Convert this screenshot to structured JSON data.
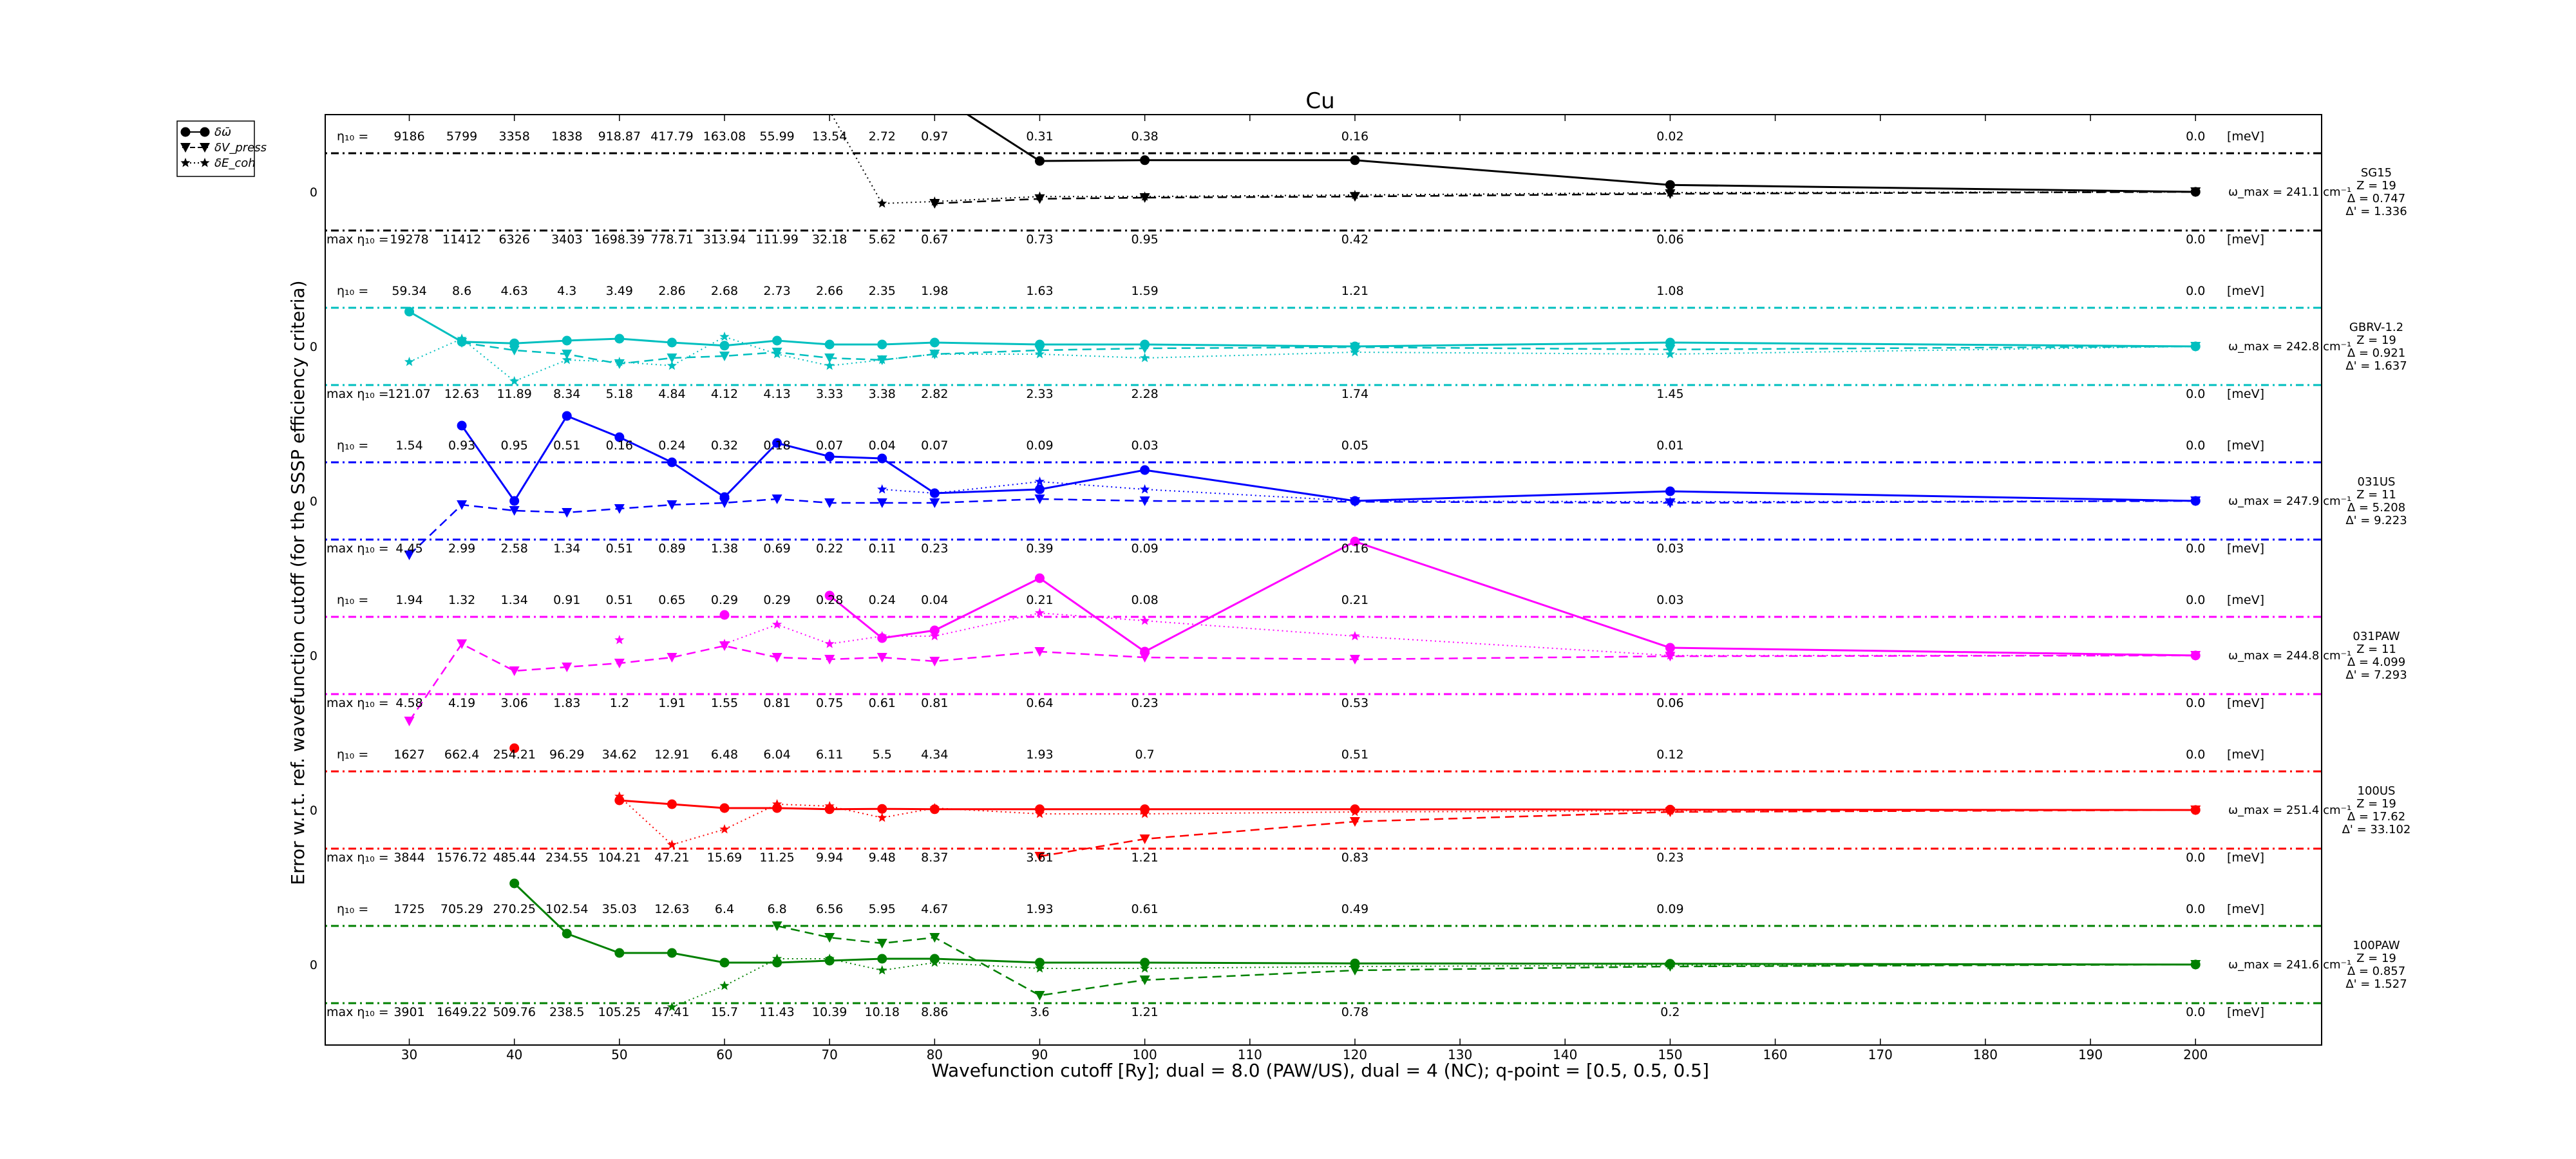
{
  "chart_data": {
    "type": "line",
    "title": "Cu",
    "xlabel": "Wavefunction cutoff [Ry]; dual = 8.0 (PAW/US), dual = 4 (NC); q-point = [0.5, 0.5, 0.5]",
    "ylabel": "Error w.r.t. ref. wavefunction cutoff (for the SSSP efficiency criteria)",
    "xlim": [
      22,
      212
    ],
    "xticks": [
      30,
      40,
      50,
      60,
      70,
      80,
      90,
      100,
      110,
      120,
      130,
      140,
      150,
      160,
      170,
      180,
      190,
      200
    ],
    "x": [
      30,
      35,
      40,
      45,
      50,
      55,
      60,
      65,
      70,
      75,
      80,
      90,
      100,
      120,
      150,
      200
    ],
    "legend": {
      "position": "outside-upper-left",
      "entries": [
        {
          "label": "δω̄",
          "marker": "o",
          "line": "solid"
        },
        {
          "label": "δV_press",
          "marker": "v",
          "line": "dashed"
        },
        {
          "label": "δE_coh",
          "marker": "*",
          "line": "dotted"
        }
      ]
    },
    "meV_label": "[meV]",
    "zero_label": "0",
    "eta_prefix": "η₁₀ =",
    "max_eta_prefix": "max η₁₀ =",
    "panels": [
      {
        "name": "SG15",
        "color": "#000000",
        "info": [
          "SG15",
          "Z = 19",
          "Δ = 0.747",
          "Δ' = 1.336"
        ],
        "omega_max": "ω_max = 241.1 cm⁻¹",
        "eta10": [
          "9186",
          "5799",
          "3358",
          "1838",
          "918.87",
          "417.79",
          "163.08",
          "55.99",
          "13.54",
          "2.72",
          "0.97",
          "0.31",
          "0.38",
          "0.16",
          "0.02",
          "0.0"
        ],
        "max_eta10": [
          "19278",
          "11412",
          "6326",
          "3403",
          "1698.39",
          "778.71",
          "313.94",
          "111.99",
          "32.18",
          "5.62",
          "0.67",
          "0.73",
          "0.95",
          "0.42",
          "0.06",
          "0.0"
        ],
        "omega": [
          null,
          null,
          null,
          null,
          null,
          null,
          null,
          null,
          null,
          2.25,
          2.55,
          0.8,
          0.82,
          0.82,
          0.18,
          0
        ],
        "press": [
          null,
          null,
          null,
          null,
          null,
          null,
          null,
          null,
          null,
          null,
          -0.3,
          -0.18,
          -0.15,
          -0.12,
          -0.05,
          0
        ],
        "ecoh": [
          null,
          null,
          null,
          null,
          null,
          null,
          null,
          null,
          2.1,
          -0.3,
          -0.25,
          -0.12,
          -0.12,
          -0.08,
          -0.02,
          0
        ]
      },
      {
        "name": "GBRV-1.2",
        "color": "#00bfbf",
        "info": [
          "GBRV-1.2",
          "Z = 19",
          "Δ = 0.921",
          "Δ' = 1.637"
        ],
        "omega_max": "ω_max = 242.8 cm⁻¹",
        "eta10": [
          "59.34",
          "8.6",
          "4.63",
          "4.3",
          "3.49",
          "2.86",
          "2.68",
          "2.73",
          "2.66",
          "2.35",
          "1.98",
          "1.63",
          "1.59",
          "1.21",
          "1.08",
          "0.0"
        ],
        "max_eta10": [
          "121.07",
          "12.63",
          "11.89",
          "8.34",
          "5.18",
          "4.84",
          "4.12",
          "4.13",
          "3.33",
          "3.38",
          "2.82",
          "2.33",
          "2.28",
          "1.74",
          "1.45",
          "0.0"
        ],
        "omega": [
          0.9,
          0.12,
          0.08,
          0.15,
          0.2,
          0.1,
          0.02,
          0.15,
          0.05,
          0.05,
          0.1,
          0.05,
          0.05,
          0.0,
          0.1,
          0
        ],
        "press": [
          null,
          0.1,
          -0.1,
          -0.2,
          -0.45,
          -0.3,
          -0.25,
          -0.15,
          -0.3,
          -0.35,
          -0.2,
          -0.1,
          -0.05,
          -0.02,
          -0.08,
          0
        ],
        "ecoh": [
          -0.4,
          0.2,
          -0.9,
          -0.35,
          -0.4,
          -0.5,
          0.25,
          -0.2,
          -0.5,
          -0.35,
          -0.2,
          -0.2,
          -0.3,
          -0.15,
          -0.2,
          0
        ]
      },
      {
        "name": "031US",
        "color": "#0000ff",
        "info": [
          "031US",
          "Z = 11",
          "Δ = 5.208",
          "Δ' = 9.223"
        ],
        "omega_max": "ω_max = 247.9 cm⁻¹",
        "eta10": [
          "1.54",
          "0.93",
          "0.95",
          "0.51",
          "0.16",
          "0.24",
          "0.32",
          "0.18",
          "0.07",
          "0.04",
          "0.07",
          "0.09",
          "0.03",
          "0.05",
          "0.01",
          "0.0"
        ],
        "max_eta10": [
          "4.45",
          "2.99",
          "2.58",
          "1.34",
          "0.51",
          "0.89",
          "1.38",
          "0.69",
          "0.22",
          "0.11",
          "0.23",
          "0.39",
          "0.09",
          "0.16",
          "0.03",
          "0.0"
        ],
        "omega": [
          null,
          1.95,
          0.0,
          2.2,
          1.65,
          1.0,
          0.1,
          1.5,
          1.15,
          1.1,
          0.2,
          0.3,
          0.8,
          0.0,
          0.25,
          0
        ],
        "press": [
          -1.4,
          -0.1,
          -0.25,
          -0.3,
          -0.2,
          -0.1,
          -0.05,
          0.05,
          -0.05,
          -0.05,
          -0.05,
          0.05,
          0.0,
          -0.02,
          -0.05,
          0
        ],
        "ecoh": [
          null,
          null,
          null,
          null,
          null,
          null,
          null,
          null,
          null,
          0.3,
          0.2,
          0.5,
          0.3,
          0.0,
          -0.02,
          0
        ]
      },
      {
        "name": "031PAW",
        "color": "#ff00ff",
        "info": [
          "031PAW",
          "Z = 11",
          "Δ = 4.099",
          "Δ' = 7.293"
        ],
        "omega_max": "ω_max = 244.8 cm⁻¹",
        "eta10": [
          "1.94",
          "1.32",
          "1.34",
          "0.91",
          "0.51",
          "0.65",
          "0.29",
          "0.29",
          "0.28",
          "0.24",
          "0.04",
          "0.21",
          "0.08",
          "0.21",
          "0.03",
          "0.0"
        ],
        "max_eta10": [
          "4.58",
          "4.19",
          "3.06",
          "1.83",
          "1.2",
          "1.91",
          "1.55",
          "0.81",
          "0.75",
          "0.61",
          "0.81",
          "0.64",
          "0.23",
          "0.53",
          "0.06",
          "0.0"
        ],
        "omega": [
          null,
          null,
          null,
          null,
          null,
          null,
          1.05,
          null,
          1.55,
          0.45,
          0.65,
          2.0,
          0.1,
          2.95,
          0.2,
          0
        ],
        "press": [
          -1.7,
          0.3,
          -0.4,
          -0.3,
          -0.2,
          -0.05,
          0.25,
          -0.05,
          -0.1,
          -0.05,
          -0.15,
          0.1,
          -0.05,
          -0.1,
          -0.02,
          0
        ],
        "ecoh": [
          null,
          null,
          null,
          null,
          0.4,
          null,
          0.3,
          0.8,
          0.3,
          0.5,
          0.5,
          1.1,
          0.9,
          0.5,
          0.0,
          0
        ]
      },
      {
        "name": "100US",
        "color": "#ff0000",
        "info": [
          "100US",
          "Z = 19",
          "Δ = 17.62",
          "Δ' = 33.102"
        ],
        "omega_max": "ω_max = 251.4 cm⁻¹",
        "eta10": [
          "1627",
          "662.4",
          "254.21",
          "96.29",
          "34.62",
          "12.91",
          "6.48",
          "6.04",
          "6.11",
          "5.5",
          "4.34",
          "1.93",
          "0.7",
          "0.51",
          "0.12",
          "0.0"
        ],
        "max_eta10": [
          "3844",
          "1576.72",
          "485.44",
          "234.55",
          "104.21",
          "47.21",
          "15.69",
          "11.25",
          "9.94",
          "9.48",
          "8.37",
          "3.61",
          "1.21",
          "0.83",
          "0.23",
          "0.0"
        ],
        "omega": [
          null,
          null,
          1.6,
          null,
          0.25,
          0.15,
          0.05,
          0.05,
          0.02,
          0.03,
          0.02,
          0.02,
          0.02,
          0.02,
          0.01,
          0
        ],
        "press": [
          null,
          null,
          null,
          null,
          null,
          null,
          null,
          null,
          null,
          null,
          null,
          -1.2,
          -0.75,
          -0.3,
          -0.05,
          0
        ],
        "ecoh": [
          null,
          null,
          null,
          null,
          0.35,
          -0.9,
          -0.5,
          0.15,
          0.1,
          -0.2,
          0.05,
          -0.1,
          -0.1,
          -0.05,
          -0.02,
          0
        ]
      },
      {
        "name": "100PAW",
        "color": "#008000",
        "info": [
          "100PAW",
          "Z = 19",
          "Δ = 0.857",
          "Δ' = 1.527"
        ],
        "omega_max": "ω_max = 241.6 cm⁻¹",
        "eta10": [
          "1725",
          "705.29",
          "270.25",
          "102.54",
          "35.03",
          "12.63",
          "6.4",
          "6.8",
          "6.56",
          "5.95",
          "4.67",
          "1.93",
          "0.61",
          "0.49",
          "0.09",
          "0.0"
        ],
        "max_eta10": [
          "3901",
          "1649.22",
          "509.76",
          "238.5",
          "105.25",
          "47.41",
          "15.7",
          "11.43",
          "10.39",
          "10.18",
          "8.86",
          "3.6",
          "1.21",
          "0.78",
          "0.2",
          "0.0"
        ],
        "omega": [
          null,
          null,
          2.1,
          0.8,
          0.3,
          0.3,
          0.05,
          0.05,
          0.1,
          0.15,
          0.15,
          0.05,
          0.05,
          0.03,
          0.02,
          0
        ],
        "press": [
          null,
          null,
          null,
          null,
          null,
          null,
          null,
          1.0,
          0.7,
          0.55,
          0.7,
          -0.8,
          -0.4,
          -0.15,
          -0.05,
          0
        ],
        "ecoh": [
          null,
          null,
          null,
          null,
          null,
          -1.1,
          -0.55,
          0.15,
          0.15,
          -0.15,
          0.05,
          -0.1,
          -0.1,
          -0.05,
          -0.02,
          0
        ]
      }
    ]
  }
}
